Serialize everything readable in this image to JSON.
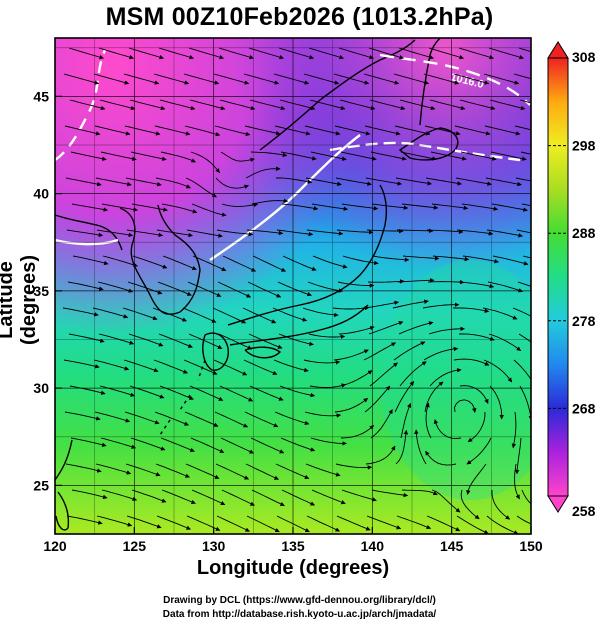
{
  "title": "MSM 00Z10Feb2026 (1013.2hPa)",
  "axes": {
    "xlabel": "Longitude (degrees)",
    "ylabel": "Latitude  (degrees)",
    "xlim": [
      120,
      150
    ],
    "ylim": [
      22.5,
      48
    ],
    "xticks": [
      "120",
      "125",
      "130",
      "135",
      "140",
      "145",
      "150"
    ],
    "yticks": [
      "25",
      "30",
      "35",
      "40",
      "45"
    ]
  },
  "colorbar": {
    "min": 258,
    "max": 308,
    "ticks": [
      "258",
      "268",
      "278",
      "288",
      "298",
      "308"
    ],
    "colors": [
      "#ff44cc",
      "#aa22dd",
      "#2a2ad8",
      "#2288ee",
      "#22ccdd",
      "#22dd88",
      "#44dd33",
      "#aadd22",
      "#eeee22",
      "#ffaa11",
      "#ff6611",
      "#ee2222"
    ]
  },
  "map": {
    "contour_label": "1016.0",
    "features": [
      "temperature-field",
      "streamlines",
      "coastlines",
      "isobars"
    ]
  },
  "credits": {
    "line1": "Drawing by DCL (https://www.gfd-dennou.org/library/dcl/)",
    "line2": "Data from http://database.rish.kyoto-u.ac.jp/arch/jmadata/"
  }
}
